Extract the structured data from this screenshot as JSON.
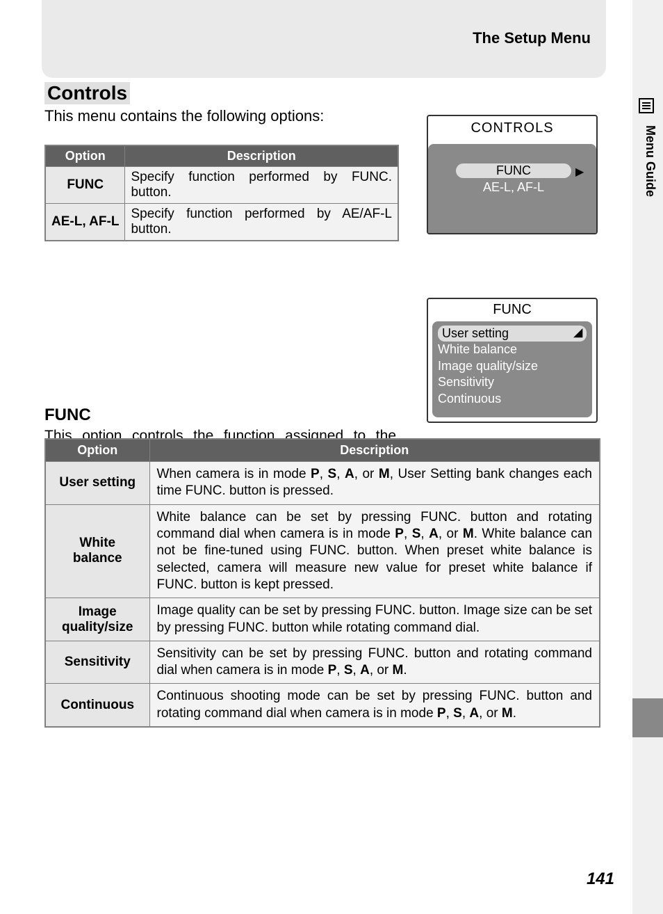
{
  "header": {
    "title": "The Setup Menu"
  },
  "side": {
    "label": "Menu Guide"
  },
  "page_number": "141",
  "section": {
    "heading": "Controls",
    "intro": "This menu contains the following options:"
  },
  "table1": {
    "headers": {
      "option": "Option",
      "description": "Description"
    },
    "rows": [
      {
        "option": "FUNC",
        "description": "Specify function performed by FUNC. button."
      },
      {
        "option": "AE-L, AF-L",
        "description": "Specify function performed by AE/AF-L button."
      }
    ]
  },
  "lcd1": {
    "title": "CONTROLS",
    "items": [
      "FUNC",
      "AE-L, AF-L"
    ]
  },
  "func": {
    "heading": "FUNC",
    "body": "This option controls the function assigned to the FUNC. button, making it possible to select the User Setting number or adjust white balance, image quality, sensitivity (ISO equivalency), or metering without accessing the camera menus."
  },
  "lcd2": {
    "title": "FUNC",
    "items": [
      "User setting",
      "White balance",
      "Image quality/size",
      "Sensitivity",
      "Continuous"
    ]
  },
  "table2": {
    "headers": {
      "option": "Option",
      "description": "Description"
    },
    "rows": [
      {
        "option": "User setting",
        "desc_pre": "When camera is in mode ",
        "modes": [
          "P",
          "S",
          "A",
          "M"
        ],
        "desc_post": ", User Setting bank changes each time FUNC. button is pressed."
      },
      {
        "option": "White balance",
        "desc_pre": "White balance can be set by pressing FUNC. button and rotating command dial when camera is in mode ",
        "modes": [
          "P",
          "S",
          "A",
          "M"
        ],
        "desc_post": ". White balance can not be fine-tuned using FUNC. button. When preset white balance is selected, camera will measure new value for preset white balance if FUNC. button is kept pressed."
      },
      {
        "option": "Image quality/size",
        "desc_plain": "Image quality can be set by pressing FUNC. button.  Image size can be set by pressing FUNC. button while rotating command dial."
      },
      {
        "option": "Sensitivity",
        "desc_pre": "Sensitivity can be set by pressing FUNC. button and rotating command dial when camera is in mode ",
        "modes": [
          "P",
          "S",
          "A",
          "M"
        ],
        "desc_post": "."
      },
      {
        "option": "Continuous",
        "desc_pre": "Continuous shooting mode can be set by pressing FUNC. button and rotating command dial when camera is in mode ",
        "modes": [
          "P",
          "S",
          "A",
          "M"
        ],
        "desc_post": "."
      }
    ]
  },
  "colors": {
    "header_gray": "#eaeaea",
    "table_header_bg": "#606060",
    "table_header_fg": "#ffffff",
    "table_border": "#808080",
    "opt_bg": "#e6e6e6",
    "desc_bg": "#f4f4f4",
    "lcd_body": "#8a8a8a",
    "lcd_sel_bg": "#dddddd"
  }
}
